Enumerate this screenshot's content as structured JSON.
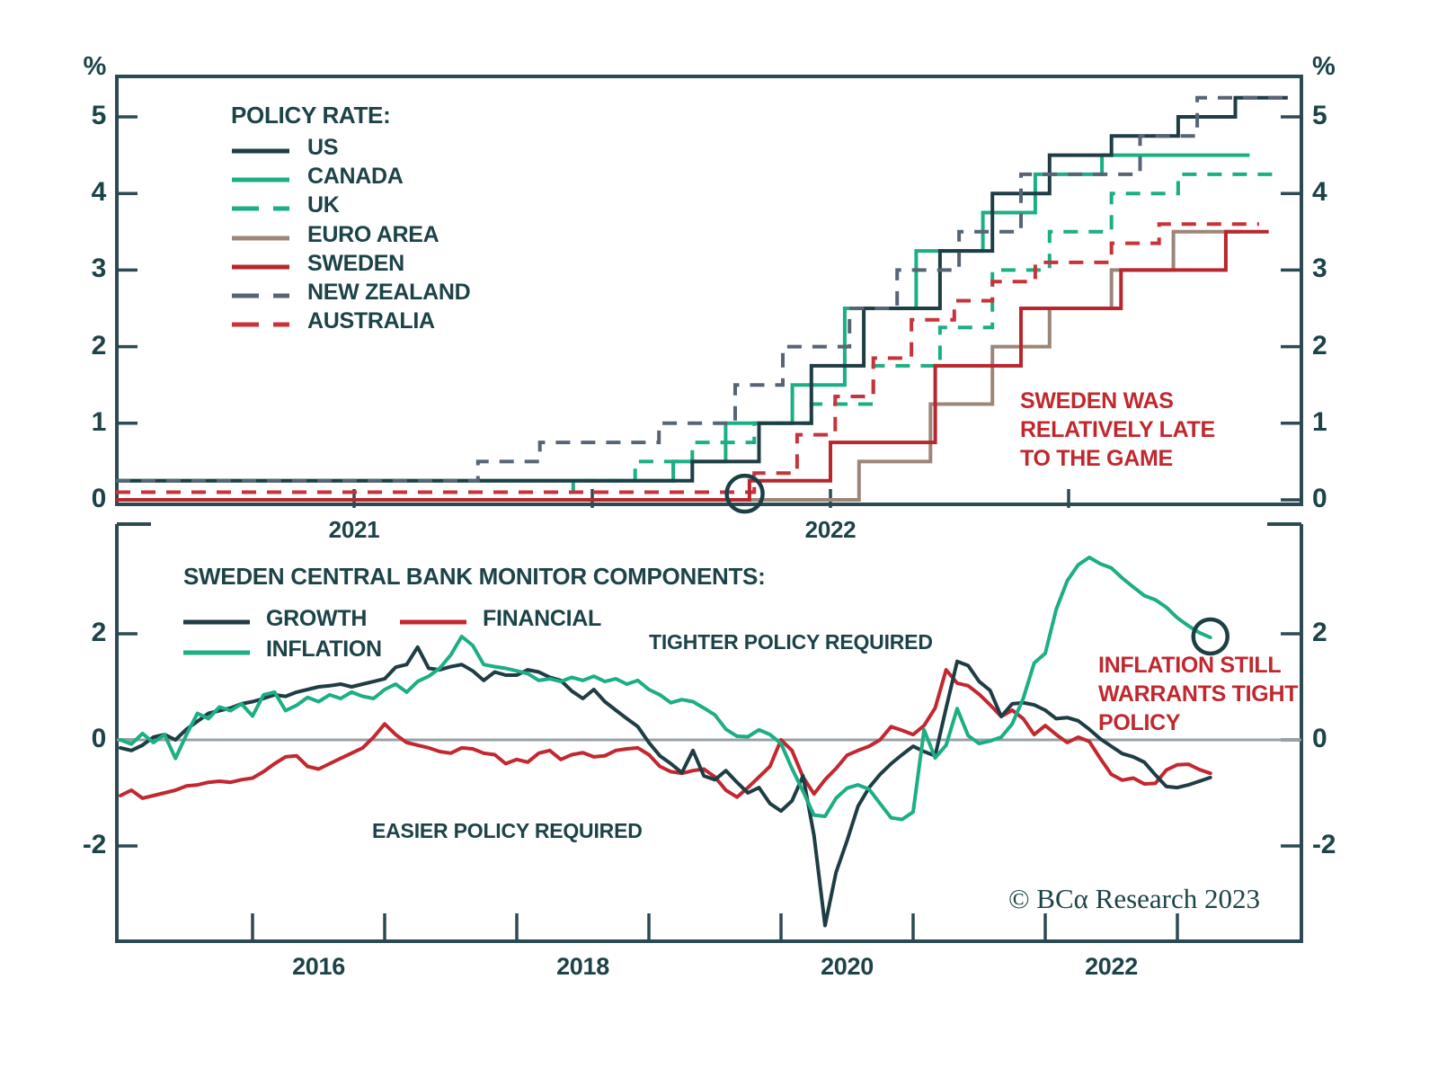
{
  "colors": {
    "axis": "#2b4a52",
    "text": "#1c4348",
    "annotation_red": "#c0282e",
    "zero_line": "#97a0a6",
    "us": "#1e3d44",
    "canada": "#1cae84",
    "uk": "#1cae84",
    "euro_area": "#9c8678",
    "sweden": "#b8262e",
    "new_zealand": "#566474",
    "australia": "#c8323a",
    "growth": "#1e3d44",
    "inflation": "#1cae84",
    "financial": "#c32730"
  },
  "top_panel": {
    "unit_label": "%",
    "y_tick_labels": [
      "5",
      "4",
      "3",
      "2",
      "1",
      "0"
    ],
    "y_tick_values": [
      5,
      4,
      3,
      2,
      1,
      0
    ],
    "x_tick_years": [
      2021.5,
      2022.0,
      2022.5,
      2023.0
    ],
    "x_labels": [
      {
        "text": "2021",
        "year": 2021.5
      },
      {
        "text": "2022",
        "year": 2022.5
      }
    ],
    "legend": {
      "title": "POLICY RATE:",
      "items": [
        {
          "label": "US",
          "color": "#1e3d44",
          "dash": false
        },
        {
          "label": "CANADA",
          "color": "#1cae84",
          "dash": false
        },
        {
          "label": "UK",
          "color": "#1cae84",
          "dash": true
        },
        {
          "label": "EURO AREA",
          "color": "#9c8678",
          "dash": false
        },
        {
          "label": "SWEDEN",
          "color": "#b8262e",
          "dash": false
        },
        {
          "label": "NEW ZEALAND",
          "color": "#566474",
          "dash": true
        },
        {
          "label": "AUSTRALIA",
          "color": "#c8323a",
          "dash": true
        }
      ]
    },
    "annotation": "SWEDEN WAS\nRELATIVELY LATE\nTO THE GAME",
    "circle": {
      "year": 2022.32,
      "value": 0.08,
      "radius": 20
    }
  },
  "bottom_panel": {
    "y_tick_labels": [
      "2",
      "0",
      "-2"
    ],
    "y_tick_values": [
      2,
      0,
      -2
    ],
    "x_tick_years": [
      2016,
      2017,
      2018,
      2019,
      2020,
      2021,
      2022,
      2023
    ],
    "x_labels": [
      {
        "text": "2016",
        "year": 2016.5
      },
      {
        "text": "2018",
        "year": 2018.5
      },
      {
        "text": "2020",
        "year": 2020.5
      },
      {
        "text": "2022",
        "year": 2022.5
      }
    ],
    "legend": {
      "title": "SWEDEN CENTRAL BANK MONITOR COMPONENTS:",
      "rows": [
        [
          {
            "label": "GROWTH",
            "color": "#1e3d44",
            "dash": false
          },
          {
            "label": "FINANCIAL",
            "color": "#c32730",
            "dash": false
          }
        ],
        [
          {
            "label": "INFLATION",
            "color": "#1cae84",
            "dash": false
          }
        ]
      ]
    },
    "zone_label_upper": "TIGHTER POLICY REQUIRED",
    "zone_label_lower": "EASIER POLICY REQUIRED",
    "annotation": "INFLATION STILL\nWARRANTS TIGHT\nPOLICY",
    "circle": {
      "year": 2023.25,
      "value": 1.95,
      "radius": 19
    },
    "copyright": "© BCα Research 2023"
  },
  "chart_data": [
    {
      "type": "line",
      "subtype": "step",
      "title": "Policy rate (%)",
      "ylabel": "%",
      "x_range": [
        2021.0,
        2023.5
      ],
      "ylim": [
        0,
        5.5
      ],
      "grid": false,
      "legend_position": "top-left",
      "series": [
        {
          "name": "US",
          "color": "#1e3d44",
          "dash": false,
          "z": 4,
          "end": 2023.46,
          "points": [
            [
              2021.0,
              0.25
            ],
            [
              2022.21,
              0.5
            ],
            [
              2022.35,
              1.0
            ],
            [
              2022.46,
              1.75
            ],
            [
              2022.57,
              2.5
            ],
            [
              2022.73,
              3.25
            ],
            [
              2022.84,
              4.0
            ],
            [
              2022.96,
              4.5
            ],
            [
              2023.09,
              4.75
            ],
            [
              2023.23,
              5.0
            ],
            [
              2023.35,
              5.25
            ]
          ]
        },
        {
          "name": "CANADA",
          "color": "#1cae84",
          "dash": false,
          "z": 3,
          "end": 2023.38,
          "points": [
            [
              2021.0,
              0.25
            ],
            [
              2022.17,
              0.5
            ],
            [
              2022.28,
              1.0
            ],
            [
              2022.42,
              1.5
            ],
            [
              2022.53,
              2.5
            ],
            [
              2022.68,
              3.25
            ],
            [
              2022.82,
              3.75
            ],
            [
              2022.93,
              4.25
            ],
            [
              2023.07,
              4.5
            ]
          ]
        },
        {
          "name": "UK",
          "color": "#1cae84",
          "dash": true,
          "z": 2,
          "end": 2023.44,
          "points": [
            [
              2021.0,
              0.1
            ],
            [
              2021.96,
              0.25
            ],
            [
              2022.09,
              0.5
            ],
            [
              2022.21,
              0.75
            ],
            [
              2022.34,
              1.0
            ],
            [
              2022.46,
              1.25
            ],
            [
              2022.59,
              1.75
            ],
            [
              2022.73,
              2.25
            ],
            [
              2022.84,
              3.0
            ],
            [
              2022.96,
              3.5
            ],
            [
              2023.09,
              4.0
            ],
            [
              2023.23,
              4.25
            ]
          ]
        },
        {
          "name": "EURO AREA",
          "color": "#9c8678",
          "dash": false,
          "z": 1,
          "end": 2023.36,
          "points": [
            [
              2021.0,
              0.0
            ],
            [
              2022.56,
              0.5
            ],
            [
              2022.71,
              1.25
            ],
            [
              2022.84,
              2.0
            ],
            [
              2022.96,
              2.5
            ],
            [
              2023.09,
              3.0
            ],
            [
              2023.22,
              3.5
            ]
          ]
        },
        {
          "name": "SWEDEN",
          "color": "#b8262e",
          "dash": false,
          "z": 7,
          "end": 2023.42,
          "points": [
            [
              2021.0,
              0.0
            ],
            [
              2022.33,
              0.25
            ],
            [
              2022.5,
              0.75
            ],
            [
              2022.72,
              1.75
            ],
            [
              2022.9,
              2.5
            ],
            [
              2023.11,
              3.0
            ],
            [
              2023.33,
              3.5
            ]
          ]
        },
        {
          "name": "NEW ZEALAND",
          "color": "#566474",
          "dash": true,
          "z": 5,
          "end": 2023.45,
          "points": [
            [
              2021.0,
              0.25
            ],
            [
              2021.76,
              0.5
            ],
            [
              2021.89,
              0.75
            ],
            [
              2022.14,
              1.0
            ],
            [
              2022.3,
              1.5
            ],
            [
              2022.4,
              2.0
            ],
            [
              2022.54,
              2.5
            ],
            [
              2022.64,
              3.0
            ],
            [
              2022.77,
              3.5
            ],
            [
              2022.9,
              4.25
            ],
            [
              2023.15,
              4.75
            ],
            [
              2023.27,
              5.25
            ]
          ]
        },
        {
          "name": "AUSTRALIA",
          "color": "#c8323a",
          "dash": true,
          "z": 6,
          "end": 2023.4,
          "points": [
            [
              2021.0,
              0.1
            ],
            [
              2022.34,
              0.35
            ],
            [
              2022.43,
              0.85
            ],
            [
              2022.51,
              1.35
            ],
            [
              2022.59,
              1.85
            ],
            [
              2022.67,
              2.35
            ],
            [
              2022.76,
              2.6
            ],
            [
              2022.84,
              2.85
            ],
            [
              2022.93,
              3.1
            ],
            [
              2023.09,
              3.35
            ],
            [
              2023.19,
              3.6
            ]
          ]
        }
      ]
    },
    {
      "type": "line",
      "title": "Sweden central bank monitor components (standardized)",
      "x_start": 2015.0,
      "x_step": 0.083333,
      "ylim": [
        -3.7,
        4.3
      ],
      "grid": false,
      "zero_line": true,
      "series": [
        {
          "name": "FINANCIAL",
          "color": "#c32730",
          "z": 1,
          "values": [
            -1.05,
            -0.95,
            -1.1,
            -1.05,
            -1.0,
            -0.95,
            -0.87,
            -0.85,
            -0.8,
            -0.78,
            -0.8,
            -0.75,
            -0.72,
            -0.6,
            -0.45,
            -0.32,
            -0.3,
            -0.5,
            -0.55,
            -0.45,
            -0.35,
            -0.25,
            -0.15,
            0.05,
            0.3,
            0.1,
            -0.05,
            -0.1,
            -0.15,
            -0.22,
            -0.25,
            -0.15,
            -0.17,
            -0.25,
            -0.28,
            -0.45,
            -0.37,
            -0.42,
            -0.25,
            -0.2,
            -0.37,
            -0.28,
            -0.24,
            -0.32,
            -0.3,
            -0.2,
            -0.17,
            -0.15,
            -0.28,
            -0.5,
            -0.6,
            -0.63,
            -0.58,
            -0.55,
            -0.7,
            -0.95,
            -1.08,
            -0.9,
            -0.7,
            -0.5,
            0.0,
            -0.2,
            -0.7,
            -1.02,
            -0.75,
            -0.54,
            -0.29,
            -0.2,
            -0.12,
            0.0,
            0.25,
            0.18,
            0.1,
            0.27,
            0.6,
            1.32,
            1.07,
            1.02,
            0.86,
            0.66,
            0.44,
            0.56,
            0.4,
            0.1,
            0.27,
            0.1,
            -0.05,
            0.05,
            -0.03,
            -0.35,
            -0.65,
            -0.76,
            -0.72,
            -0.83,
            -0.82,
            -0.57,
            -0.47,
            -0.46,
            -0.56,
            -0.63
          ]
        },
        {
          "name": "GROWTH",
          "color": "#1e3d44",
          "z": 2,
          "values": [
            -0.15,
            -0.2,
            -0.1,
            0.05,
            0.1,
            0.0,
            0.2,
            0.35,
            0.5,
            0.55,
            0.6,
            0.68,
            0.72,
            0.78,
            0.85,
            0.82,
            0.9,
            0.95,
            1.0,
            1.02,
            1.05,
            1.0,
            1.05,
            1.1,
            1.15,
            1.37,
            1.42,
            1.75,
            1.35,
            1.32,
            1.38,
            1.42,
            1.3,
            1.12,
            1.28,
            1.22,
            1.22,
            1.32,
            1.28,
            1.18,
            1.12,
            0.92,
            0.78,
            0.95,
            0.72,
            0.56,
            0.4,
            0.25,
            -0.05,
            -0.3,
            -0.45,
            -0.62,
            -0.2,
            -0.68,
            -0.75,
            -0.58,
            -0.8,
            -1.0,
            -0.9,
            -1.2,
            -1.34,
            -1.15,
            -0.68,
            -1.8,
            -3.5,
            -2.5,
            -1.9,
            -1.25,
            -0.9,
            -0.65,
            -0.45,
            -0.28,
            -0.12,
            -0.22,
            -0.3,
            0.6,
            1.48,
            1.4,
            1.1,
            0.93,
            0.44,
            0.68,
            0.7,
            0.66,
            0.56,
            0.4,
            0.42,
            0.36,
            0.2,
            0.02,
            -0.12,
            -0.26,
            -0.32,
            -0.42,
            -0.66,
            -0.88,
            -0.9,
            -0.85,
            -0.78,
            -0.71
          ]
        },
        {
          "name": "INFLATION",
          "color": "#1cae84",
          "z": 3,
          "values": [
            0.0,
            -0.08,
            0.12,
            -0.05,
            0.1,
            -0.35,
            0.1,
            0.5,
            0.4,
            0.62,
            0.55,
            0.68,
            0.45,
            0.85,
            0.9,
            0.55,
            0.65,
            0.8,
            0.72,
            0.85,
            0.78,
            0.9,
            0.82,
            0.78,
            0.95,
            1.05,
            0.9,
            1.1,
            1.2,
            1.35,
            1.6,
            1.95,
            1.78,
            1.42,
            1.38,
            1.35,
            1.3,
            1.25,
            1.12,
            1.15,
            1.1,
            1.18,
            1.12,
            1.2,
            1.1,
            1.15,
            1.05,
            1.12,
            0.95,
            0.85,
            0.7,
            0.76,
            0.72,
            0.6,
            0.47,
            0.2,
            0.07,
            0.06,
            0.19,
            0.1,
            -0.07,
            -0.54,
            -0.97,
            -1.42,
            -1.44,
            -1.1,
            -0.91,
            -0.85,
            -0.93,
            -1.2,
            -1.47,
            -1.5,
            -1.36,
            0.19,
            -0.34,
            -0.1,
            0.59,
            0.08,
            -0.07,
            -0.02,
            0.05,
            0.3,
            0.78,
            1.45,
            1.63,
            2.46,
            3.0,
            3.3,
            3.44,
            3.32,
            3.24,
            3.05,
            2.88,
            2.72,
            2.64,
            2.5,
            2.3,
            2.15,
            2.02,
            1.93
          ]
        }
      ]
    }
  ]
}
